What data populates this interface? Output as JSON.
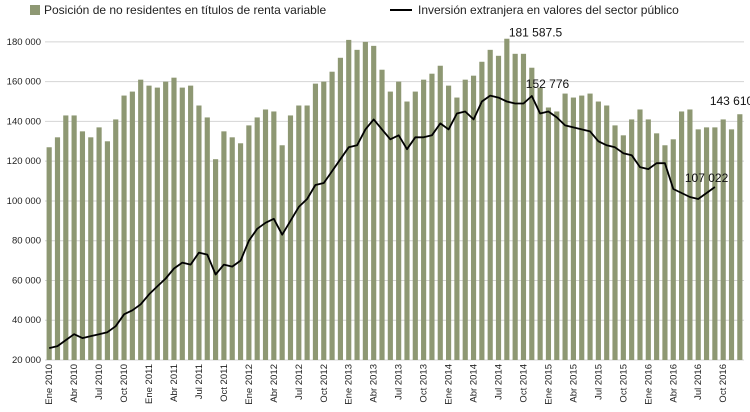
{
  "chart_data": {
    "type": "bar",
    "title": "",
    "xlabel": "",
    "ylabel": "",
    "ylim": [
      20000,
      190000
    ],
    "y_ticks": [
      "20 000",
      "40 000",
      "60 000",
      "80 000",
      "100 000",
      "120 000",
      "140 000",
      "160 000",
      "180 000"
    ],
    "y_tick_values": [
      20000,
      40000,
      60000,
      80000,
      100000,
      120000,
      140000,
      160000,
      180000
    ],
    "grid": true,
    "legend_position": "top",
    "x_tick_labels": [
      {
        "index": 0,
        "label": "Ene 2010"
      },
      {
        "index": 3,
        "label": "Abr 2010"
      },
      {
        "index": 6,
        "label": "Jul 2010"
      },
      {
        "index": 9,
        "label": "Oct 2010"
      },
      {
        "index": 12,
        "label": "Ene 2011"
      },
      {
        "index": 15,
        "label": "Abr 2011"
      },
      {
        "index": 18,
        "label": "Jul 2011"
      },
      {
        "index": 21,
        "label": "Oct 2011"
      },
      {
        "index": 24,
        "label": "Ene 2012"
      },
      {
        "index": 27,
        "label": "Abr 2012"
      },
      {
        "index": 30,
        "label": "Jul 2012"
      },
      {
        "index": 33,
        "label": "Oct 2012"
      },
      {
        "index": 36,
        "label": "Ene 2013"
      },
      {
        "index": 39,
        "label": "Abr 2013"
      },
      {
        "index": 42,
        "label": "Jul 2013"
      },
      {
        "index": 45,
        "label": "Oct 2013"
      },
      {
        "index": 48,
        "label": "Ene 2014"
      },
      {
        "index": 51,
        "label": "Abr 2014"
      },
      {
        "index": 54,
        "label": "Jul 2014"
      },
      {
        "index": 57,
        "label": "Oct 2014"
      },
      {
        "index": 60,
        "label": "Ene 2015"
      },
      {
        "index": 63,
        "label": "Abr 2015"
      },
      {
        "index": 66,
        "label": "Jul 2015"
      },
      {
        "index": 69,
        "label": "Oct 2015"
      },
      {
        "index": 72,
        "label": "Ene 2016"
      },
      {
        "index": 75,
        "label": "Abr 2016"
      },
      {
        "index": 78,
        "label": "Jul 2016"
      },
      {
        "index": 81,
        "label": "Oct 2016"
      }
    ],
    "series": [
      {
        "name": "Posición de no residentes en títulos de renta variable",
        "kind": "bar",
        "color": "#8e9873",
        "values": [
          127000,
          132000,
          143000,
          143000,
          135000,
          132000,
          137000,
          130000,
          141000,
          153000,
          155000,
          161000,
          158000,
          157000,
          160000,
          162000,
          157000,
          158000,
          148000,
          142000,
          121000,
          135000,
          132000,
          129000,
          138000,
          142000,
          146000,
          145000,
          128000,
          143000,
          148000,
          148000,
          159000,
          160000,
          165000,
          172000,
          181000,
          176000,
          180000,
          178000,
          166000,
          155000,
          160000,
          150000,
          155000,
          161000,
          164000,
          168000,
          158000,
          152000,
          161000,
          163000,
          170000,
          176000,
          173000,
          181587.5,
          174000,
          174000,
          167000,
          157000,
          147000,
          145000,
          154000,
          152000,
          153000,
          154000,
          150000,
          148000,
          138000,
          133000,
          141000,
          146000,
          141000,
          134000,
          128000,
          131000,
          145000,
          146000,
          136000,
          137000,
          137000,
          141000,
          136000,
          143610
        ]
      },
      {
        "name": "Inversión extranjera en valores del sector público",
        "kind": "line",
        "color": "#000000",
        "values": [
          26000,
          27000,
          30000,
          33000,
          31000,
          32000,
          33000,
          34000,
          37000,
          43000,
          45000,
          48000,
          53000,
          57000,
          61000,
          66000,
          69000,
          68000,
          74000,
          73000,
          63000,
          68000,
          67000,
          70000,
          80000,
          86000,
          89000,
          91000,
          83000,
          90000,
          97000,
          101000,
          108000,
          109000,
          115000,
          121000,
          127000,
          128000,
          136000,
          141000,
          136000,
          131000,
          133000,
          126000,
          132000,
          132000,
          133000,
          139000,
          136000,
          144000,
          145000,
          141000,
          150000,
          153000,
          152000,
          150000,
          149000,
          149000,
          152776,
          144000,
          145000,
          142000,
          138000,
          137000,
          136000,
          135000,
          130000,
          128000,
          127000,
          124000,
          123000,
          117000,
          116000,
          119000,
          119000,
          106000,
          104000,
          102000,
          101000,
          104000,
          107022
        ]
      }
    ],
    "annotations": [
      {
        "text": "181 587.5",
        "index": 55,
        "value": 181587.5
      },
      {
        "text": "152 776",
        "index": 58,
        "value": 152776
      },
      {
        "text": "143 610",
        "index": 83,
        "value": 143610
      },
      {
        "text": "107 022",
        "index": 80,
        "value": 107022
      }
    ]
  }
}
